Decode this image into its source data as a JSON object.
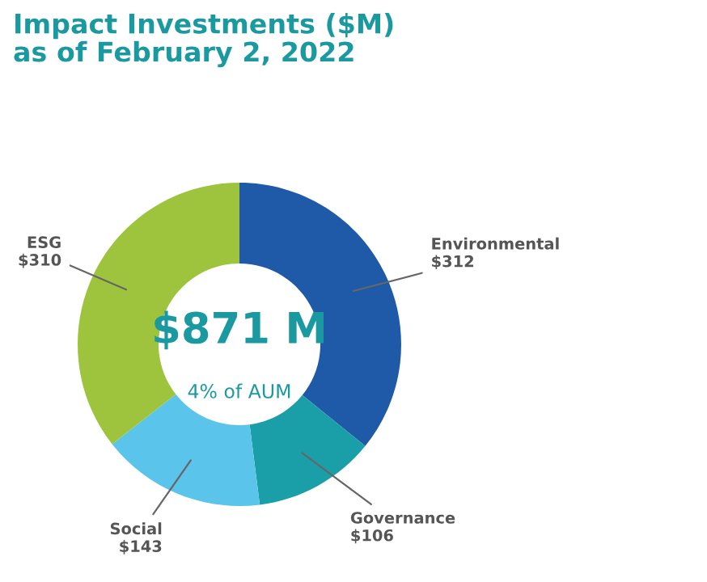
{
  "chart_data": {
    "type": "donut",
    "title": "Impact Investments ($M)\nas of February 2, 2022",
    "categories": [
      "Environmental",
      "Governance",
      "Social",
      "ESG"
    ],
    "values": [
      312,
      106,
      143,
      310
    ],
    "colors": [
      "#1f5aa8",
      "#1a9fa8",
      "#5bc4ea",
      "#9dc43c"
    ],
    "value_labels": [
      "$312",
      "$106",
      "$143",
      "$310"
    ],
    "annotations": [
      "$871 M",
      "4% of AUM"
    ],
    "legend": false
  }
}
